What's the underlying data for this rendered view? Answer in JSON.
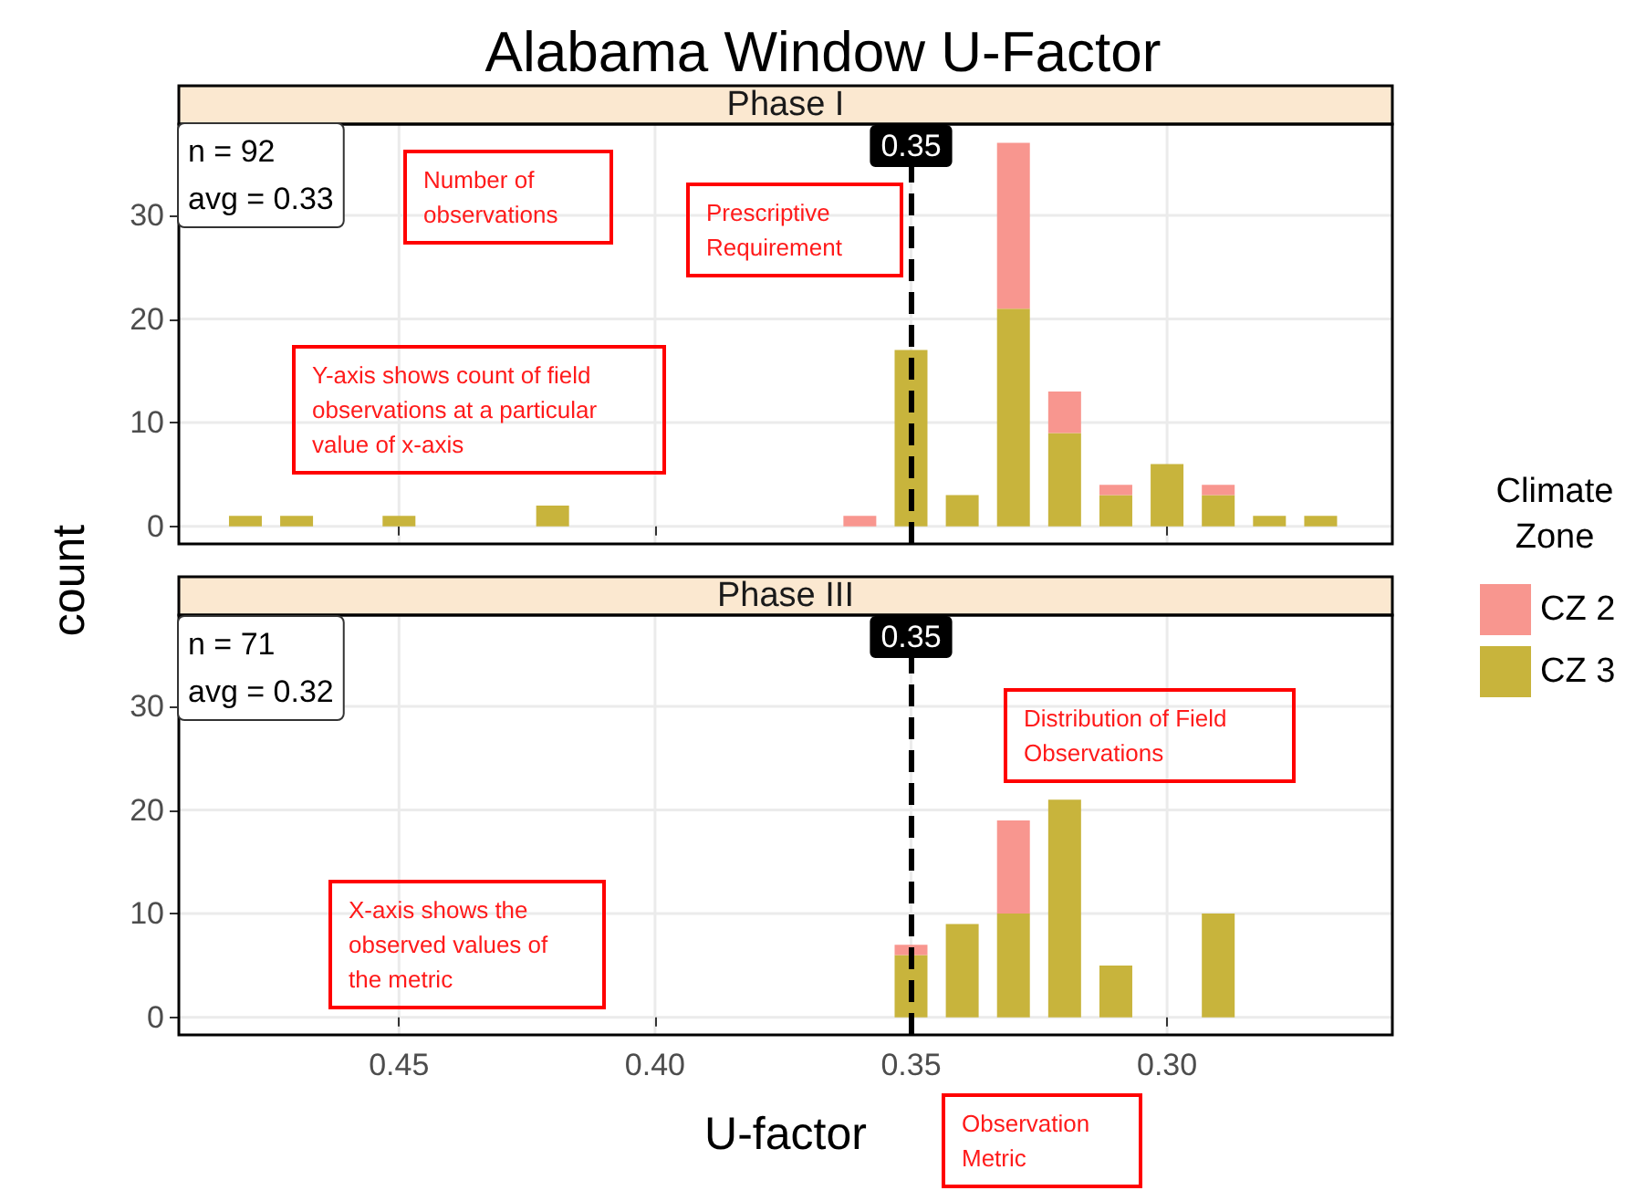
{
  "chart_data": [
    {
      "type": "bar",
      "title": "Alabama Window U-Factor",
      "subtitle": "Phase I",
      "ylabel": "count",
      "legend_title": "Climate\nZone",
      "legend": "right",
      "stacked": true,
      "grid": true,
      "tick_labels": "y",
      "x": [
        0.48,
        0.47,
        0.45,
        0.42,
        0.36,
        0.35,
        0.34,
        0.33,
        0.32,
        0.31,
        0.3,
        0.29,
        0.28,
        0.27
      ],
      "series": [
        {
          "name": "CZ 3",
          "color": "#c8b43c",
          "values": [
            1,
            1,
            1,
            2,
            null,
            17,
            3,
            21,
            9,
            3,
            6,
            3,
            1,
            1
          ]
        },
        {
          "name": "CZ 2",
          "color": "#f8968f",
          "values": [
            null,
            null,
            null,
            null,
            1,
            null,
            null,
            16,
            4,
            1,
            null,
            1,
            null,
            null
          ]
        }
      ],
      "xlim": [
        0.493,
        0.256
      ],
      "xticks": [
        0.45,
        0.4,
        0.35,
        0.3
      ],
      "ylim": [
        -1.7,
        38.8
      ],
      "yticks": [
        0,
        10,
        20,
        30
      ],
      "ref_lines": [
        {
          "axis": "x",
          "value": 0.35,
          "label": "0.35",
          "color": "#000000",
          "line_style": "dashed"
        }
      ],
      "annotations": [
        "n = 92\navg = 0.33",
        "Number of observations",
        "Prescriptive Requirement",
        "Y-axis shows count of field observations at a particular value of x-axis"
      ]
    },
    {
      "type": "bar",
      "subtitle": "Phase III",
      "xlabel": "U-factor",
      "stacked": true,
      "grid": true,
      "x": [
        0.35,
        0.34,
        0.33,
        0.32,
        0.31,
        0.29
      ],
      "series": [
        {
          "color": "#c8b43c",
          "values": [
            6,
            9,
            10,
            21,
            5,
            10
          ]
        },
        {
          "color": "#f8968f",
          "values": [
            1,
            null,
            9,
            null,
            null,
            null
          ]
        }
      ],
      "xlim": [
        0.493,
        0.256
      ],
      "xticks": [
        0.45,
        {
          "value": 0.4,
          "label": "0.40"
        },
        0.35,
        {
          "value": 0.3,
          "label": "0.30"
        }
      ],
      "ylim": [
        -1.7,
        38.8
      ],
      "yticks": [
        0,
        10,
        20,
        30
      ],
      "ref_lines": [
        {
          "axis": "x",
          "value": 0.35,
          "label": "0.35",
          "color": "#000000",
          "line_style": "dashed"
        }
      ],
      "annotations": [
        "n = 71\navg = 0.32",
        "Distribution of Field Observations",
        "X-axis shows the observed values of the metric",
        "Observation Metric"
      ]
    }
  ]
}
